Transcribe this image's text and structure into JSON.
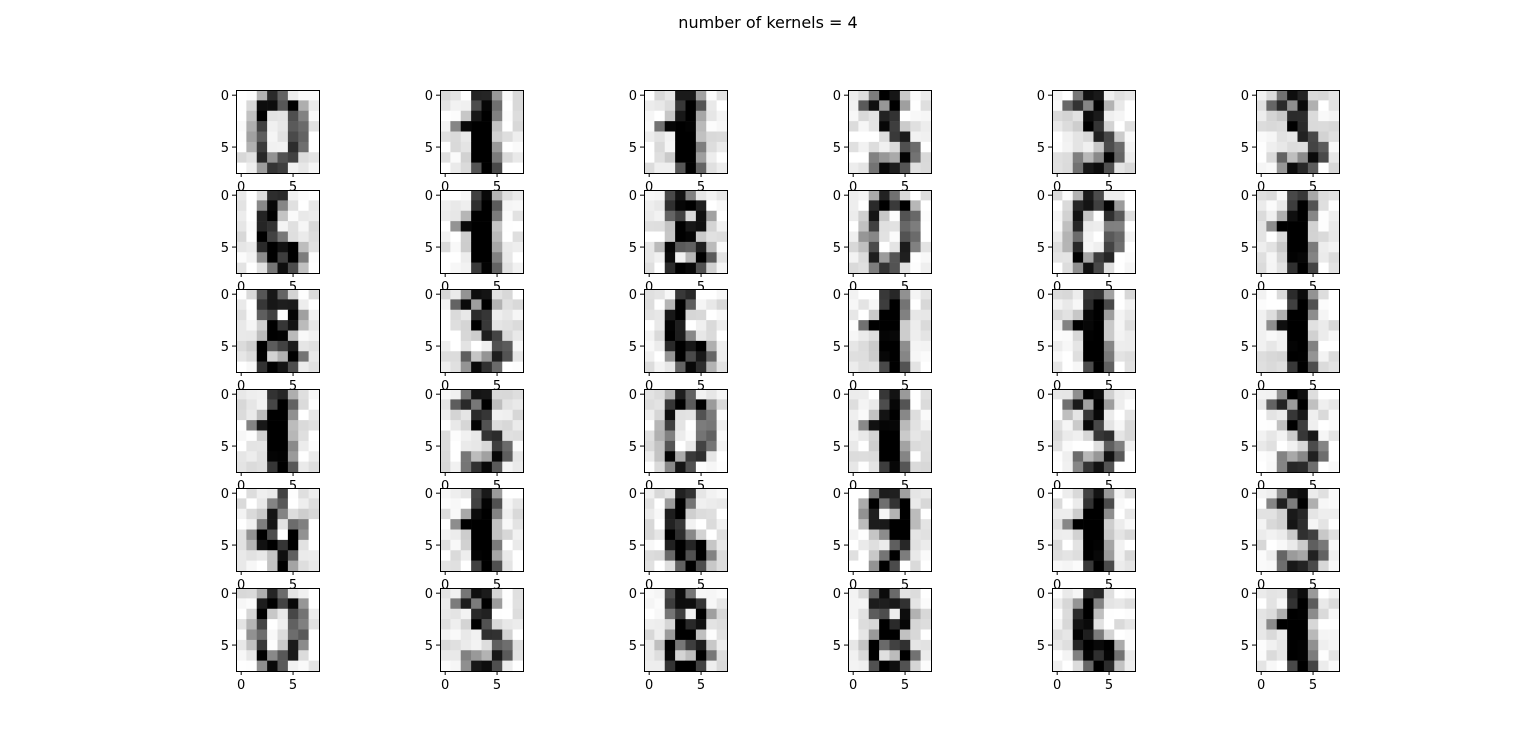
{
  "figure": {
    "title": "number of kernels = 4"
  },
  "chart_data": {
    "type": "heatmap",
    "title": "number of kernels = 4",
    "colormap": "gray_r",
    "value_range": [
      0,
      16
    ],
    "grid": false,
    "rows": 6,
    "cols": 6,
    "pixel_grid": [
      8,
      8
    ],
    "x_ticks": [
      0,
      5
    ],
    "y_ticks": [
      0,
      5
    ],
    "x_tick_labels": [
      "0",
      "5"
    ],
    "y_tick_labels": [
      "0",
      "5"
    ],
    "xlim": [
      -0.5,
      7.5
    ],
    "ylim": [
      7.5,
      -0.5
    ],
    "digits": [
      [
        0,
        1,
        1,
        3,
        3,
        3
      ],
      [
        6,
        1,
        8,
        0,
        0,
        1
      ],
      [
        8,
        3,
        6,
        1,
        1,
        1
      ],
      [
        1,
        3,
        0,
        1,
        3,
        3
      ],
      [
        4,
        1,
        6,
        9,
        1,
        3
      ],
      [
        0,
        3,
        8,
        8,
        6,
        1
      ]
    ]
  }
}
